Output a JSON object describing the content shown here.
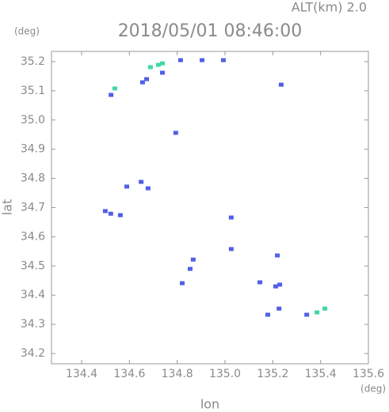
{
  "chart_data": {
    "type": "scatter",
    "title": "2018/05/01 08:46:00",
    "subtitle": "ALT(km) 2.0",
    "y_unit": "(deg)",
    "x_unit": "(deg)",
    "x_label": "lon",
    "y_label": "lat",
    "xlim": [
      134.274,
      135.6
    ],
    "ylim": [
      34.165,
      35.235
    ],
    "xticks": [
      134.4,
      134.6,
      134.8,
      {
        "value": 135.0,
        "label": "135.0"
      },
      135.2,
      135.4,
      135.6
    ],
    "yticks": [
      34.2,
      34.3,
      34.4,
      34.5,
      34.6,
      34.7,
      34.8,
      34.9,
      {
        "value": 35.0,
        "label": "35.0"
      },
      35.1,
      35.2
    ],
    "series": [
      {
        "color": "#4f5fe6",
        "x": [
          134.523,
          134.655,
          134.672,
          134.738,
          134.814,
          134.904,
          134.993,
          135.235,
          134.589,
          134.649,
          134.678,
          134.499,
          134.522,
          134.562,
          134.867,
          134.821,
          134.854,
          135.026,
          135.026,
          135.146,
          135.212,
          135.229,
          135.226,
          135.179,
          135.342,
          135.219,
          134.794
        ],
        "values": [
          35.086,
          35.129,
          35.14,
          35.162,
          35.205,
          35.205,
          35.205,
          35.121,
          34.772,
          34.788,
          34.766,
          34.688,
          34.679,
          34.674,
          34.522,
          34.441,
          34.49,
          34.558,
          34.666,
          34.444,
          34.43,
          34.436,
          34.354,
          34.333,
          34.333,
          34.536,
          34.956
        ]
      },
      {
        "color": "#3fd8a8",
        "x": [
          134.539,
          134.688,
          134.721,
          134.738,
          135.385,
          135.418
        ],
        "values": [
          35.108,
          35.181,
          35.189,
          35.194,
          34.341,
          34.354
        ]
      }
    ]
  }
}
